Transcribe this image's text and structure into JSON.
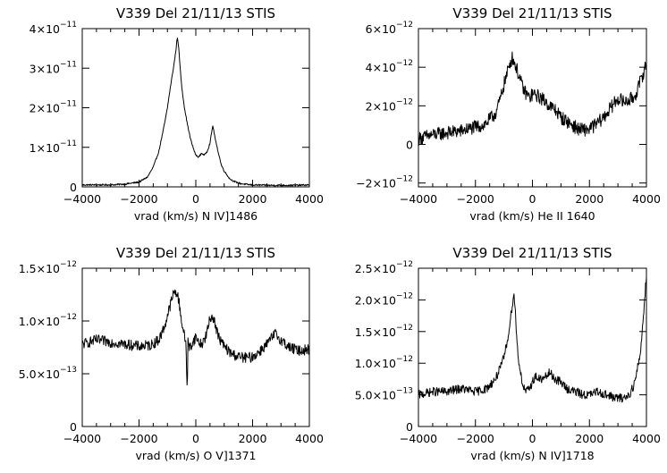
{
  "chart_data": [
    {
      "type": "line",
      "title": "V339  Del  21/11/13  STIS",
      "xlabel": "vrad (km/s) N IV]1486",
      "xlim": [
        -4000,
        4000
      ],
      "ylim": [
        0,
        4e-11
      ],
      "xticks": [
        -4000,
        -2000,
        0,
        2000,
        4000
      ],
      "xtick_labels": [
        "−4000",
        "−2000",
        "0",
        "2000",
        "4000"
      ],
      "yticks": [
        0,
        1e-11,
        2e-11,
        3e-11,
        4e-11
      ],
      "ytick_labels": [
        {
          "m": "0",
          "e": ""
        },
        {
          "m": "1×10",
          "e": "−11"
        },
        {
          "m": "2×10",
          "e": "−11"
        },
        {
          "m": "3×10",
          "e": "−11"
        },
        {
          "m": "4×10",
          "e": "−11"
        }
      ],
      "series": [
        {
          "x": [
            -4000,
            -3500,
            -3000,
            -2500,
            -2000,
            -1700,
            -1500,
            -1300,
            -1100,
            -1000,
            -900,
            -800,
            -700,
            -650,
            -600,
            -550,
            -500,
            -400,
            -300,
            -200,
            -100,
            0,
            100,
            200,
            300,
            400,
            500,
            550,
            600,
            650,
            700,
            800,
            900,
            1000,
            1200,
            1400,
            1600,
            1800,
            2000,
            2500,
            3000,
            3500,
            4000
          ],
          "y": [
            5e-13,
            5e-13,
            5e-13,
            7e-13,
            1.2e-12,
            2.5e-12,
            5e-12,
            9e-12,
            1.6e-11,
            2e-11,
            2.5e-11,
            2.95e-11,
            3.45e-11,
            3.8e-11,
            3.5e-11,
            3e-11,
            2.55e-11,
            2e-11,
            1.6e-11,
            1.25e-11,
            1e-11,
            8e-12,
            7.5e-12,
            8.5e-12,
            8e-12,
            9e-12,
            1.1e-11,
            1.35e-11,
            1.55e-11,
            1.35e-11,
            1.15e-11,
            8.5e-12,
            5.5e-12,
            4e-12,
            2e-12,
            1.2e-12,
            8e-13,
            6e-13,
            5e-13,
            4e-13,
            4e-13,
            4e-13,
            5e-13
          ],
          "noise": 2e-13
        }
      ]
    },
    {
      "type": "line",
      "title": "V339  Del  21/11/13  STIS",
      "xlabel": "vrad (km/s) He II 1640",
      "xlim": [
        -4000,
        4000
      ],
      "ylim": [
        -2.2e-12,
        6e-12
      ],
      "xticks": [
        -4000,
        -2000,
        0,
        2000,
        4000
      ],
      "xtick_labels": [
        "−4000",
        "−2000",
        "0",
        "2000",
        "4000"
      ],
      "yticks": [
        -2e-12,
        0,
        2e-12,
        4e-12,
        6e-12
      ],
      "ytick_labels": [
        {
          "m": "−2×10",
          "e": "−12"
        },
        {
          "m": "0",
          "e": ""
        },
        {
          "m": "2×10",
          "e": "−12"
        },
        {
          "m": "4×10",
          "e": "−12"
        },
        {
          "m": "6×10",
          "e": "−12"
        }
      ],
      "series": [
        {
          "x": [
            -4000,
            -3500,
            -3000,
            -2500,
            -2000,
            -1700,
            -1500,
            -1300,
            -1200,
            -1100,
            -1000,
            -900,
            -800,
            -700,
            -600,
            -500,
            -400,
            -300,
            -200,
            -100,
            0,
            200,
            400,
            600,
            800,
            1000,
            1300,
            1600,
            1800,
            2000,
            2200,
            2500,
            2800,
            3000,
            3200,
            3400,
            3600,
            3800,
            4000
          ],
          "y": [
            3e-13,
            5e-13,
            6e-13,
            7e-13,
            9e-13,
            1e-12,
            1.3e-12,
            1.6e-12,
            2e-12,
            2.5e-12,
            3.1e-12,
            3.6e-12,
            4.2e-12,
            4.5e-12,
            4.1e-12,
            3.7e-12,
            3.2e-12,
            2.8e-12,
            2.6e-12,
            2.4e-12,
            2.6e-12,
            2.5e-12,
            2.3e-12,
            2e-12,
            1.8e-12,
            1.4e-12,
            1.1e-12,
            8e-13,
            7.5e-13,
            8e-13,
            1e-12,
            1.4e-12,
            2e-12,
            2.4e-12,
            2.2e-12,
            2.3e-12,
            2.5e-12,
            3.3e-12,
            4.2e-12
          ],
          "noise": 3.5e-13
        }
      ]
    },
    {
      "type": "line",
      "title": "V339  Del  21/11/13  STIS",
      "xlabel": "vrad (km/s) O V]1371",
      "xlim": [
        -4000,
        4000
      ],
      "ylim": [
        0,
        1.5e-12
      ],
      "xticks": [
        -4000,
        -2000,
        0,
        2000,
        4000
      ],
      "xtick_labels": [
        "−4000",
        "−2000",
        "0",
        "2000",
        "4000"
      ],
      "yticks": [
        0,
        5e-13,
        1e-12,
        1.5e-12
      ],
      "ytick_labels": [
        {
          "m": "0",
          "e": ""
        },
        {
          "m": "5.0×10",
          "e": "−13"
        },
        {
          "m": "1.0×10",
          "e": "−12"
        },
        {
          "m": "1.5×10",
          "e": "−12"
        }
      ],
      "series": [
        {
          "x": [
            -4000,
            -3500,
            -3000,
            -2500,
            -2000,
            -1600,
            -1300,
            -1100,
            -900,
            -800,
            -700,
            -600,
            -500,
            -400,
            -350,
            -300,
            -280,
            -250,
            -200,
            -100,
            0,
            100,
            200,
            300,
            400,
            500,
            600,
            700,
            800,
            1000,
            1200,
            1500,
            1800,
            2000,
            2200,
            2500,
            2800,
            3000,
            3300,
            3600,
            4000
          ],
          "y": [
            7.8e-13,
            8.2e-13,
            8e-13,
            7.8e-13,
            7.6e-13,
            7.7e-13,
            8.2e-13,
            9.5e-13,
            1.15e-12,
            1.25e-12,
            1.28e-12,
            1.2e-12,
            1e-12,
            8.5e-13,
            8e-13,
            3.2e-13,
            8e-13,
            7.6e-13,
            7.5e-13,
            8e-13,
            8.5e-13,
            8e-13,
            7.8e-13,
            8.2e-13,
            9e-13,
            1.02e-12,
            1.05e-12,
            9.5e-13,
            8.5e-13,
            7.6e-13,
            7e-13,
            6.6e-13,
            6.5e-13,
            6.6e-13,
            7e-13,
            7.8e-13,
            8.8e-13,
            8.2e-13,
            7.5e-13,
            7.2e-13,
            7.3e-13
          ],
          "noise": 5e-14
        }
      ]
    },
    {
      "type": "line",
      "title": "V339  Del  21/11/13  STIS",
      "xlabel": "vrad (km/s) N IV]1718",
      "xlim": [
        -4000,
        4000
      ],
      "ylim": [
        0,
        2.5e-12
      ],
      "xticks": [
        -4000,
        -2000,
        0,
        2000,
        4000
      ],
      "xtick_labels": [
        "−4000",
        "−2000",
        "0",
        "2000",
        "4000"
      ],
      "yticks": [
        0,
        5e-13,
        1e-12,
        1.5e-12,
        2e-12,
        2.5e-12
      ],
      "ytick_labels": [
        {
          "m": "0",
          "e": ""
        },
        {
          "m": "5.0×10",
          "e": "−13"
        },
        {
          "m": "1.0×10",
          "e": "−12"
        },
        {
          "m": "1.5×10",
          "e": "−12"
        },
        {
          "m": "2.0×10",
          "e": "−12"
        },
        {
          "m": "2.5×10",
          "e": "−12"
        }
      ],
      "series": [
        {
          "x": [
            -4000,
            -3500,
            -3000,
            -2500,
            -2000,
            -1600,
            -1300,
            -1100,
            -1000,
            -900,
            -800,
            -700,
            -650,
            -600,
            -550,
            -500,
            -400,
            -300,
            -200,
            -100,
            0,
            100,
            200,
            400,
            600,
            800,
            1000,
            1200,
            1500,
            1800,
            2000,
            2300,
            2600,
            2900,
            3200,
            3400,
            3600,
            3800,
            3900,
            4000
          ],
          "y": [
            5e-13,
            5.5e-13,
            5.5e-13,
            6e-13,
            5.5e-13,
            6e-13,
            7.5e-13,
            9.5e-13,
            1.1e-12,
            1.3e-12,
            1.6e-12,
            1.95e-12,
            2.1e-12,
            1.8e-12,
            1.4e-12,
            1.1e-12,
            8e-13,
            6e-13,
            5.5e-13,
            6e-13,
            7e-13,
            8e-13,
            7.5e-13,
            7.5e-13,
            8.5e-13,
            7.5e-13,
            7e-13,
            6e-13,
            5.5e-13,
            5e-13,
            5e-13,
            5.5e-13,
            5e-13,
            4.5e-13,
            4.5e-13,
            5e-13,
            7e-13,
            1.2e-12,
            1.8e-12,
            2.4e-12
          ],
          "noise": 7e-14
        }
      ]
    }
  ]
}
